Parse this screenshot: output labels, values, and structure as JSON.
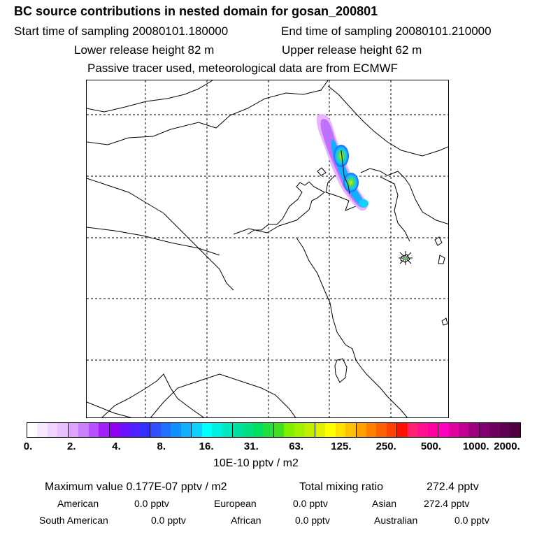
{
  "header": {
    "title": "BC  source contributions in nested domain for gosan_200801",
    "start_time": "Start time of sampling 20080101.180000",
    "end_time": "End time of sampling 20080101.210000",
    "lower_release": "Lower release height   82 m",
    "upper_release": "Upper release height   62 m",
    "tracer_note": "Passive tracer used, meteorological data are from ECMWF"
  },
  "colorbar": {
    "tick_labels": [
      "0.",
      "2.",
      "4.",
      "8.",
      "16.",
      "31.",
      "63.",
      "125.",
      "250.",
      "500.",
      "1000.",
      "2000."
    ],
    "segment_colors": [
      "#ffffff",
      "#f8e8ff",
      "#f0d4ff",
      "#e8c0ff",
      "#dca4ff",
      "#c880ff",
      "#b850ff",
      "#a020ff",
      "#9000f0",
      "#6a10ff",
      "#5020ff",
      "#3030ff",
      "#3050ff",
      "#2070ff",
      "#1090ff",
      "#10b0ff",
      "#10d0ff",
      "#00ffff",
      "#00f0e0",
      "#00e8c0",
      "#00e0a0",
      "#00e080",
      "#00e060",
      "#20e040",
      "#40e020",
      "#80f000",
      "#a0f000",
      "#c0f000",
      "#e0f000",
      "#ffff00",
      "#ffe000",
      "#ffc000",
      "#ffa000",
      "#ff8000",
      "#ff6000",
      "#ff4000",
      "#ff1000",
      "#ff2070",
      "#ff1090",
      "#ff00a0",
      "#ff00c0",
      "#e000a0",
      "#c00090",
      "#a00080",
      "#800070",
      "#700060",
      "#600050",
      "#500040"
    ],
    "units": "10E-10 pptv / m2"
  },
  "stats": {
    "max_value": "Maximum value  0.177E-07 pptv / m2",
    "total_mixing": "Total mixing ratio",
    "total_mixing_value": "272.4 pptv",
    "american_label": "American",
    "american_value": "0.0 pptv",
    "european_label": "European",
    "european_value": "0.0 pptv",
    "asian_label": "Asian",
    "asian_value": "272.4 pptv",
    "south_american_label": "South American",
    "south_american_value": "0.0 pptv",
    "african_label": "African",
    "african_value": "0.0 pptv",
    "australian_label": "Australian",
    "australian_value": "0.0 pptv"
  }
}
